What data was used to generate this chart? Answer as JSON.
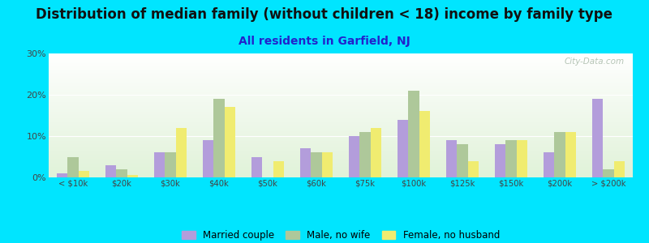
{
  "title": "Distribution of median family (without children < 18) income by family type",
  "subtitle": "All residents in Garfield, NJ",
  "categories": [
    "< $10k",
    "$20k",
    "$30k",
    "$40k",
    "$50k",
    "$60k",
    "$75k",
    "$100k",
    "$125k",
    "$150k",
    "$200k",
    "> $200k"
  ],
  "married_couple": [
    1,
    3,
    6,
    9,
    5,
    7,
    10,
    14,
    9,
    8,
    6,
    19
  ],
  "male_no_wife": [
    5,
    2,
    6,
    19,
    0,
    6,
    11,
    21,
    8,
    9,
    11,
    2
  ],
  "female_no_husband": [
    1.5,
    0.5,
    12,
    17,
    4,
    6,
    12,
    16,
    4,
    9,
    11,
    4
  ],
  "color_married": "#b39ddb",
  "color_male": "#aec89a",
  "color_female": "#f0ec70",
  "ylim": [
    0,
    30
  ],
  "yticks": [
    0,
    10,
    20,
    30
  ],
  "ytick_labels": [
    "0%",
    "10%",
    "20%",
    "30%"
  ],
  "bg_color": "#00e5ff",
  "title_fontsize": 12,
  "subtitle_fontsize": 10,
  "subtitle_color": "#2222cc",
  "watermark": "City-Data.com",
  "bar_width": 0.22
}
